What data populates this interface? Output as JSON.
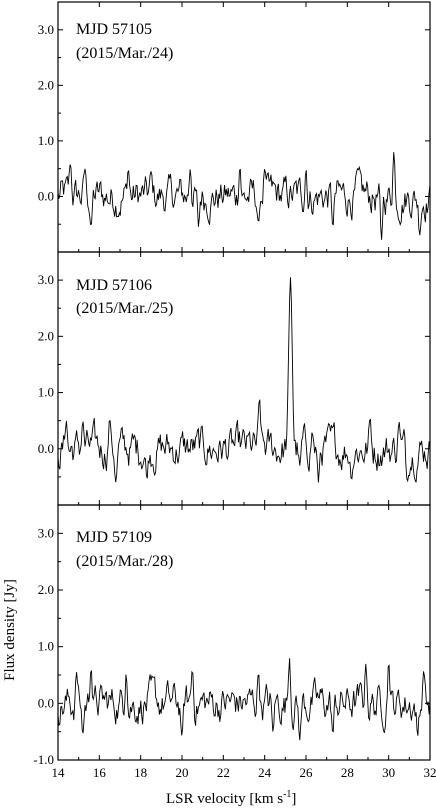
{
  "chart_data": {
    "type": "line",
    "xlabel": "LSR velocity [km s",
    "xlabel_sup": "-1",
    "xlabel_close": "]",
    "ylabel": "Flux density [Jy]",
    "xlim": [
      14,
      32
    ],
    "x_ticks": [
      14,
      16,
      18,
      20,
      22,
      24,
      26,
      28,
      30,
      32
    ],
    "x_tick_labels": [
      "14",
      "16",
      "18",
      "20",
      "22",
      "24",
      "26",
      "28",
      "30",
      "32"
    ],
    "grid": false,
    "legend": "none",
    "line_color": "#000000",
    "panels": [
      {
        "label_line1": "MJD 57105",
        "label_line2": "(2015/Mar./24)",
        "ylim": [
          -1.0,
          3.5
        ],
        "y_ticks": [
          0.0,
          1.0,
          2.0,
          3.0
        ],
        "y_tick_labels": [
          "0.0",
          "1.0",
          "2.0",
          "3.0"
        ],
        "peaks": [
          {
            "x": 14.6,
            "y": 0.6
          },
          {
            "x": 15.3,
            "y": 0.5
          },
          {
            "x": 17.4,
            "y": 0.5
          },
          {
            "x": 18.5,
            "y": 0.45
          },
          {
            "x": 20.4,
            "y": 0.5
          },
          {
            "x": 22.8,
            "y": 0.55
          },
          {
            "x": 24.0,
            "y": 0.5
          },
          {
            "x": 26.0,
            "y": 0.5
          },
          {
            "x": 28.5,
            "y": 0.5
          },
          {
            "x": 30.25,
            "y": 0.8
          }
        ],
        "dips": [
          {
            "x": 15.6,
            "y": -0.55
          },
          {
            "x": 20.8,
            "y": -0.55
          },
          {
            "x": 23.7,
            "y": -0.5
          },
          {
            "x": 27.3,
            "y": -0.55
          },
          {
            "x": 29.65,
            "y": -0.8
          },
          {
            "x": 31.5,
            "y": -0.7
          }
        ]
      },
      {
        "label_line1": "MJD 57106",
        "label_line2": "(2015/Mar./25)",
        "ylim": [
          -1.0,
          3.5
        ],
        "y_ticks": [
          0.0,
          1.0,
          2.0,
          3.0
        ],
        "y_tick_labels": [
          "0.0",
          "1.0",
          "2.0",
          "3.0"
        ],
        "peaks": [
          {
            "x": 14.4,
            "y": 0.5
          },
          {
            "x": 15.2,
            "y": 0.5
          },
          {
            "x": 16.5,
            "y": 0.55
          },
          {
            "x": 23.75,
            "y": 0.9
          },
          {
            "x": 25.25,
            "y": 3.05
          },
          {
            "x": 26.3,
            "y": 0.3
          },
          {
            "x": 29.1,
            "y": 0.55
          },
          {
            "x": 30.5,
            "y": 0.5
          }
        ],
        "dips": [
          {
            "x": 16.8,
            "y": -0.6
          },
          {
            "x": 18.3,
            "y": -0.55
          },
          {
            "x": 25.7,
            "y": -0.3
          },
          {
            "x": 26.6,
            "y": -0.6
          },
          {
            "x": 28.2,
            "y": -0.55
          },
          {
            "x": 30.9,
            "y": -0.6
          }
        ]
      },
      {
        "label_line1": "MJD 57109",
        "label_line2": "(2015/Mar./28)",
        "ylim": [
          -1.0,
          3.5
        ],
        "y_ticks": [
          -1.0,
          0.0,
          1.0,
          2.0,
          3.0
        ],
        "y_tick_labels": [
          "-1.0",
          "0.0",
          "1.0",
          "2.0",
          "3.0"
        ],
        "peaks": [
          {
            "x": 14.9,
            "y": 0.55
          },
          {
            "x": 15.6,
            "y": 0.65
          },
          {
            "x": 17.3,
            "y": 0.55
          },
          {
            "x": 20.5,
            "y": 0.6
          },
          {
            "x": 23.7,
            "y": 0.55
          },
          {
            "x": 25.2,
            "y": 0.8
          },
          {
            "x": 28.9,
            "y": 0.7
          },
          {
            "x": 30.0,
            "y": 0.75
          },
          {
            "x": 31.7,
            "y": 0.6
          }
        ],
        "dips": [
          {
            "x": 15.2,
            "y": -0.55
          },
          {
            "x": 20.0,
            "y": -0.6
          },
          {
            "x": 24.4,
            "y": -0.5
          },
          {
            "x": 25.7,
            "y": -0.65
          },
          {
            "x": 27.3,
            "y": -0.55
          },
          {
            "x": 31.4,
            "y": -0.6
          }
        ]
      }
    ]
  }
}
